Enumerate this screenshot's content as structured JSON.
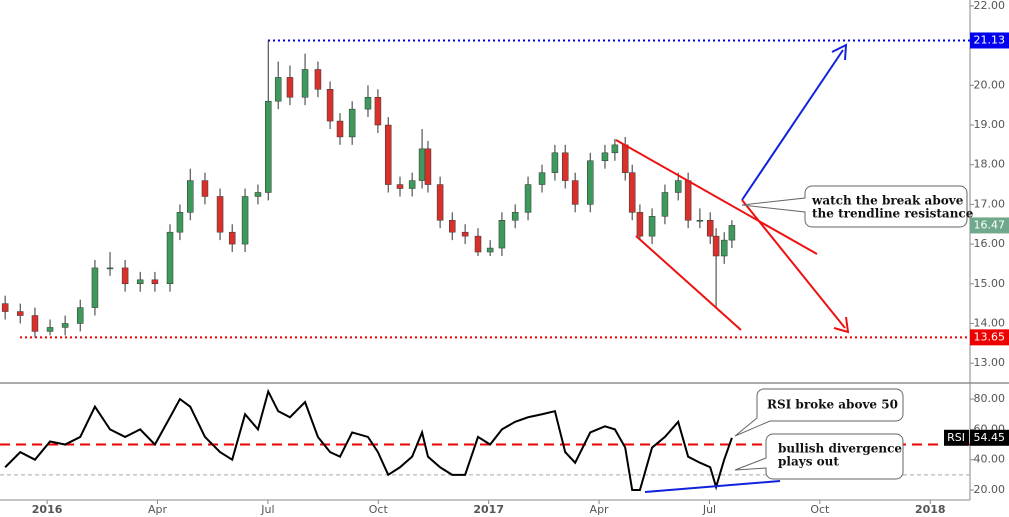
{
  "chart_data": [
    {
      "type": "candlestick",
      "x": [
        -1.14,
        -0.73,
        -0.33,
        0.08,
        0.49,
        0.9,
        1.3,
        1.71,
        2.12,
        2.53,
        2.93,
        3.34,
        3.61,
        3.89,
        4.29,
        4.7,
        5.03,
        5.38,
        5.73,
        6.01,
        6.28,
        6.6,
        7.01,
        7.36,
        7.69,
        7.96,
        8.29,
        8.72,
        8.99,
        9.27,
        9.59,
        9.92,
        10.19,
        10.35,
        10.68,
        11.01,
        11.36,
        11.71,
        12.04,
        12.36,
        12.72,
        13.07,
        13.45,
        13.8,
        14.08,
        14.35,
        14.76,
        15.16,
        15.43,
        15.71,
        15.9,
        16.11,
        16.44,
        16.79,
        17.15,
        17.42,
        17.74,
        18.02,
        18.18,
        18.4,
        18.61
      ],
      "open": [
        14.5,
        14.3,
        14.2,
        13.8,
        13.9,
        14.0,
        14.4,
        15.4,
        15.4,
        15.0,
        15.1,
        15.0,
        16.3,
        16.8,
        17.6,
        17.2,
        16.3,
        16.0,
        17.2,
        17.3,
        19.6,
        20.2,
        19.7,
        20.4,
        19.9,
        19.1,
        18.7,
        19.4,
        19.7,
        19.0,
        17.5,
        17.4,
        17.6,
        18.4,
        17.5,
        16.6,
        16.3,
        16.2,
        15.8,
        15.9,
        16.6,
        16.8,
        17.5,
        17.8,
        18.3,
        17.6,
        17.0,
        18.1,
        18.3,
        18.5,
        17.8,
        16.8,
        16.2,
        16.7,
        17.3,
        17.6,
        16.6,
        16.6,
        16.2,
        15.7,
        16.1
      ],
      "high": [
        14.7,
        14.5,
        14.4,
        14.1,
        14.2,
        14.6,
        15.6,
        15.8,
        15.6,
        15.3,
        15.3,
        16.5,
        17.0,
        17.9,
        17.8,
        17.4,
        16.5,
        17.4,
        17.5,
        21.13,
        20.6,
        20.5,
        20.8,
        20.6,
        20.1,
        19.3,
        19.6,
        20.0,
        19.9,
        19.2,
        17.7,
        17.8,
        18.9,
        18.6,
        17.7,
        16.8,
        16.5,
        16.4,
        16.1,
        16.8,
        17.0,
        17.7,
        18.0,
        18.5,
        18.5,
        17.8,
        18.3,
        18.5,
        18.65,
        18.7,
        18.0,
        17.0,
        16.9,
        17.5,
        17.8,
        17.8,
        16.9,
        16.8,
        16.4,
        16.3,
        16.6
      ],
      "low": [
        14.1,
        14.0,
        13.65,
        13.7,
        13.7,
        13.8,
        14.2,
        15.2,
        14.8,
        14.8,
        14.8,
        14.8,
        16.1,
        16.6,
        17.0,
        16.1,
        15.8,
        15.8,
        17.0,
        17.1,
        19.4,
        19.5,
        19.5,
        19.7,
        18.9,
        18.5,
        18.5,
        19.2,
        18.8,
        17.3,
        17.2,
        17.2,
        17.4,
        17.3,
        16.4,
        16.1,
        16.0,
        15.7,
        15.7,
        15.7,
        16.4,
        16.6,
        17.3,
        17.6,
        17.4,
        16.8,
        16.8,
        17.9,
        18.1,
        17.6,
        16.6,
        16.1,
        16.0,
        16.5,
        17.1,
        16.4,
        16.4,
        16.0,
        14.4,
        15.5,
        15.9
      ],
      "close": [
        14.3,
        14.2,
        13.8,
        13.9,
        14.0,
        14.4,
        15.4,
        15.4,
        15.0,
        15.1,
        15.0,
        16.3,
        16.8,
        17.6,
        17.2,
        16.3,
        16.0,
        17.2,
        17.3,
        19.6,
        20.2,
        19.7,
        20.4,
        19.9,
        19.1,
        18.7,
        19.4,
        19.7,
        19.0,
        17.5,
        17.4,
        17.6,
        18.4,
        17.5,
        16.6,
        16.3,
        16.2,
        15.8,
        15.9,
        16.6,
        16.8,
        17.5,
        17.8,
        18.3,
        17.6,
        17.0,
        18.1,
        18.3,
        18.5,
        17.8,
        16.8,
        16.2,
        16.7,
        17.3,
        17.6,
        16.6,
        16.6,
        16.2,
        15.7,
        16.1,
        16.47
      ],
      "up_color": "#3d9a5c",
      "down_color": "#d8312b",
      "last_color": "#6fa88a",
      "xlim": [
        -1.28,
        25.08
      ],
      "xticks": [
        {
          "value": 0,
          "label": "2016"
        },
        {
          "value": 3,
          "label": "Apr"
        },
        {
          "value": 6,
          "label": "Jul"
        },
        {
          "value": 9,
          "label": "Oct"
        },
        {
          "value": 12,
          "label": "2017"
        },
        {
          "value": 15,
          "label": "Apr"
        },
        {
          "value": 18,
          "label": "Jul"
        },
        {
          "value": 21,
          "label": "Oct"
        },
        {
          "value": 24,
          "label": "2018"
        }
      ],
      "ylim": [
        12.5,
        22.15
      ],
      "yticks": [
        {
          "value": 13,
          "label": "13.00"
        },
        {
          "value": 14,
          "label": "14.00"
        },
        {
          "value": 15,
          "label": "15.00"
        },
        {
          "value": 16,
          "label": "16.00"
        },
        {
          "value": 17,
          "label": "17.00"
        },
        {
          "value": 18,
          "label": "18.00"
        },
        {
          "value": 19,
          "label": "19.00"
        },
        {
          "value": 20,
          "label": "20.00"
        },
        {
          "value": 21,
          "label": "21.00"
        },
        {
          "value": 22,
          "label": "22.00"
        }
      ],
      "levels": [
        {
          "value": 21.13,
          "color": "#0000ee"
        },
        {
          "value": 13.65,
          "color": "#ee0000"
        }
      ],
      "annotation": [
        "watch the break above",
        "the trendline resistance"
      ]
    },
    {
      "type": "line",
      "series": [
        {
          "name": "RSI",
          "color": "#000000",
          "values": [
            35,
            45,
            40,
            52,
            50,
            55,
            75,
            60,
            55,
            60,
            50,
            68,
            80,
            75,
            55,
            45,
            40,
            70,
            60,
            85,
            72,
            68,
            78,
            55,
            45,
            42,
            58,
            55,
            45,
            30,
            35,
            42,
            58,
            42,
            35,
            30,
            30,
            55,
            50,
            60,
            65,
            68,
            70,
            72,
            45,
            38,
            58,
            62,
            60,
            48,
            20,
            20,
            48,
            55,
            65,
            42,
            38,
            35,
            22,
            40,
            54.45
          ]
        }
      ],
      "ylim": [
        13.4,
        90.6
      ],
      "yticks": [
        {
          "value": 20,
          "label": "20.00"
        },
        {
          "value": 40,
          "label": "40.00"
        },
        {
          "value": 60,
          "label": "60.00"
        },
        {
          "value": 80,
          "label": "80.00"
        }
      ],
      "reference_lines": [
        {
          "value": 50,
          "color": "#ee0000"
        },
        {
          "value": 30,
          "color": "#aaaaaa"
        }
      ],
      "annotations": [
        "RSI broke above 50",
        [
          "bullish divergence",
          "plays out"
        ]
      ]
    }
  ]
}
